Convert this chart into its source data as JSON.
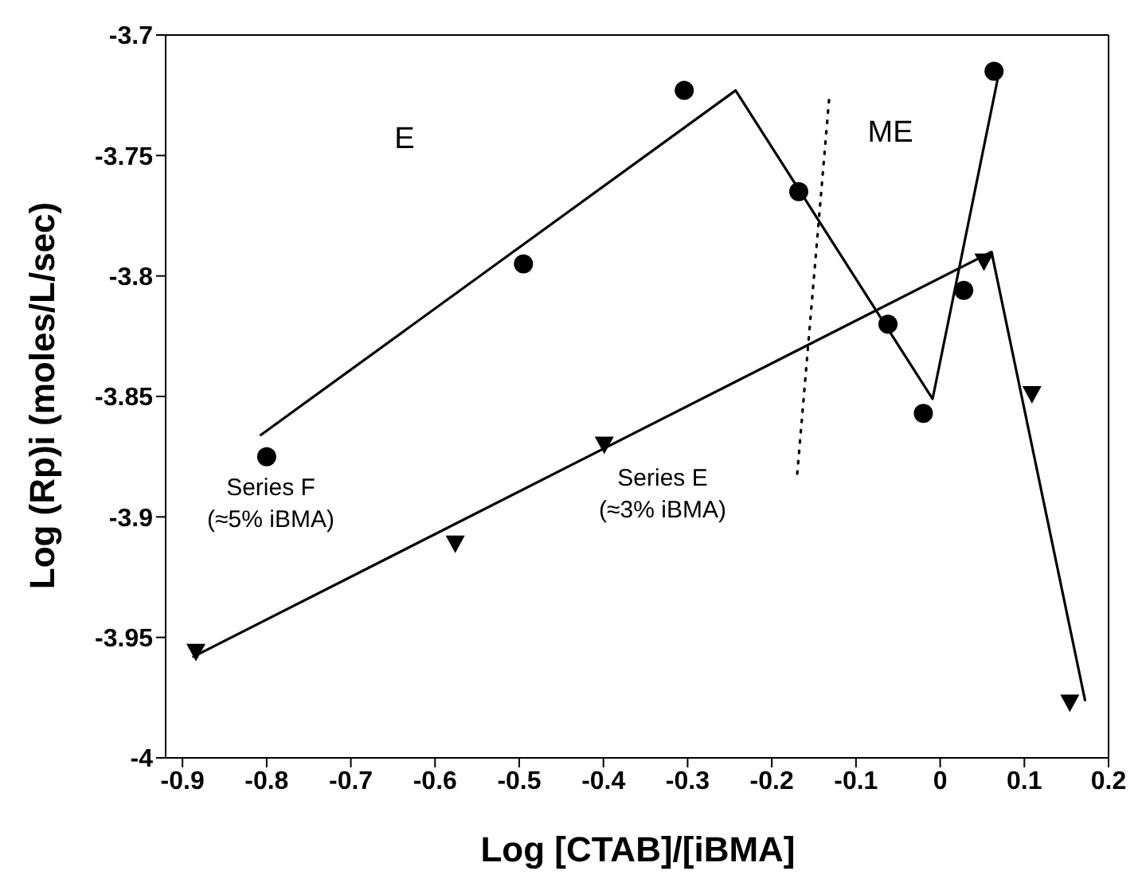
{
  "chart_data": {
    "type": "scatter",
    "xlabel": "Log [CTAB]/[iBMA]",
    "ylabel": "Log (Rp)i (moles/L/sec)",
    "xlim": [
      -0.92,
      0.2
    ],
    "xticks": [
      -0.9,
      -0.8,
      -0.7,
      -0.6,
      -0.5,
      -0.4,
      -0.3,
      -0.2,
      -0.1,
      0,
      0.1,
      0.2
    ],
    "ylim": [
      -4,
      -3.7
    ],
    "yticks": [
      -4,
      -3.95,
      -3.9,
      -3.85,
      -3.8,
      -3.75,
      -3.7
    ],
    "annotations": [
      "E",
      "ME"
    ],
    "series": [
      {
        "name": "Series F (≈5% iBMA)",
        "marker": "circle",
        "color": "#000000",
        "x": [
          -0.8,
          -0.495,
          -0.304,
          -0.168,
          -0.062,
          -0.02,
          0.028,
          0.064
        ],
        "values": [
          -3.875,
          -3.795,
          -3.723,
          -3.765,
          -3.82,
          -3.857,
          -3.806,
          -3.715
        ]
      },
      {
        "name": "Series E (≈3% iBMA)",
        "marker": "triangle",
        "color": "#000000",
        "x": [
          -0.884,
          -0.576,
          -0.399,
          0.052,
          0.109,
          0.154
        ],
        "values": [
          -3.956,
          -3.911,
          -3.87,
          -3.794,
          -3.849,
          -3.977
        ]
      },
      {
        "type": "line",
        "marker": "none",
        "line_style": "solid",
        "color": "#000000",
        "x": [
          -0.807,
          -0.243,
          -0.009,
          0.069
        ],
        "values": [
          -3.866,
          -3.723,
          -3.851,
          -3.717
        ]
      },
      {
        "type": "line",
        "marker": "none",
        "line_style": "solid",
        "color": "#000000",
        "x": [
          -0.887,
          0.061,
          0.172
        ],
        "values": [
          -3.958,
          -3.79,
          -3.976
        ]
      },
      {
        "type": "line",
        "marker": "none",
        "line_style": "dotted",
        "color": "#000000",
        "x": [
          -0.132,
          -0.17
        ],
        "values": [
          -3.727,
          -3.883
        ]
      }
    ]
  }
}
